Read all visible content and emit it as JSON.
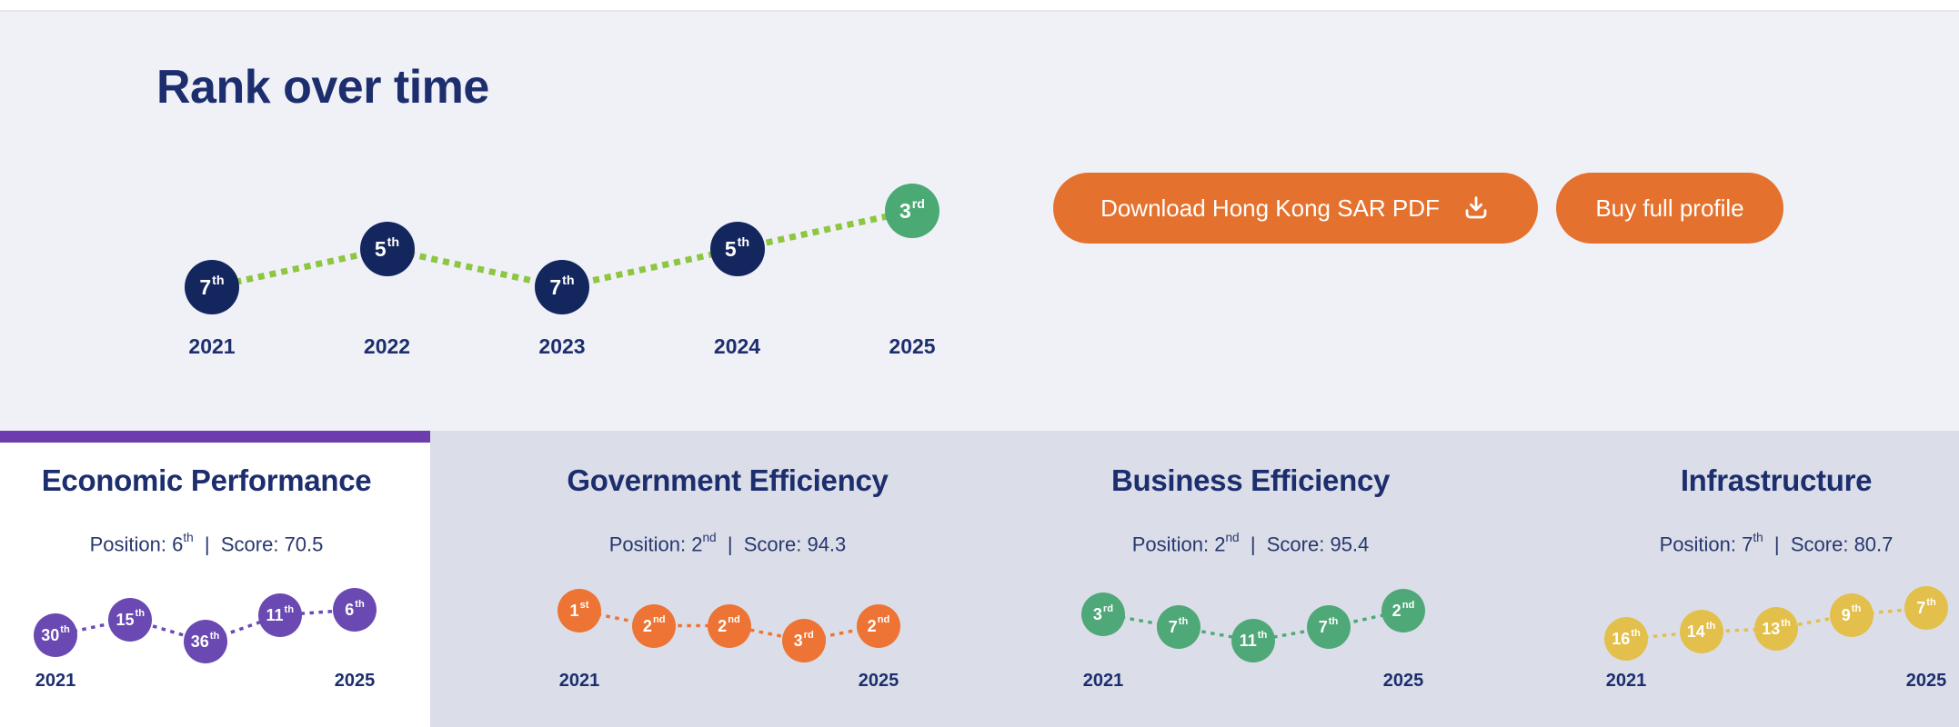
{
  "header": {
    "title": "Rank over time"
  },
  "buttons": {
    "download_label": "Download Hong Kong SAR PDF",
    "download_icon": "download-tray-icon",
    "buy_label": "Buy full profile",
    "accent_color": "#E4722E"
  },
  "colors": {
    "page_background": "#F0F1F7",
    "bottom_background": "#DBDEE8",
    "navy_text": "#1C2E6E",
    "active_tab_bar": "#6C3DAC",
    "main_node": "#14265E",
    "main_last_node": "#4BA974",
    "main_line": "#8DC63F",
    "economic": "#6A49B2",
    "government": "#ED7434",
    "business": "#4FA878",
    "infrastructure": "#E3BF4C"
  },
  "panels": [
    {
      "title": "Economic Performance",
      "position_prefix": "Position: 6",
      "position_sup": "th",
      "position_suffix": "  |  Score: 70.5",
      "active": true
    },
    {
      "title": "Government Efficiency",
      "position_prefix": "Position: 2",
      "position_sup": "nd",
      "position_suffix": "  |  Score: 94.3",
      "active": false
    },
    {
      "title": "Business Efficiency",
      "position_prefix": "Position: 2",
      "position_sup": "nd",
      "position_suffix": "  |  Score: 95.4",
      "active": false
    },
    {
      "title": "Infrastructure",
      "position_prefix": "Position: 7",
      "position_sup": "th",
      "position_suffix": "  |  Score: 80.7",
      "active": false
    }
  ],
  "chart_data": [
    {
      "id": "main",
      "type": "line",
      "title": "Rank over time",
      "x": [
        2021,
        2022,
        2023,
        2024,
        2025
      ],
      "ranks": [
        7,
        5,
        7,
        5,
        3
      ],
      "labels": [
        "7th",
        "5th",
        "7th",
        "5th",
        "3rd"
      ],
      "y_axis": "rank (lower is better)",
      "x_labels_shown": "all",
      "grid": false,
      "legend": "none",
      "node_color": "#14265E",
      "last_node_color": "#4BA974",
      "line_color": "#8DC63F"
    },
    {
      "id": "economic",
      "type": "line",
      "category": "Economic Performance",
      "position": "6th",
      "score": 70.5,
      "x": [
        2021,
        2022,
        2023,
        2024,
        2025
      ],
      "ranks": [
        30,
        15,
        36,
        11,
        6
      ],
      "labels": [
        "30th",
        "15th",
        "36th",
        "11th",
        "6th"
      ],
      "x_labels_shown": "ends",
      "color": "#6A49B2"
    },
    {
      "id": "government",
      "type": "line",
      "category": "Government Efficiency",
      "position": "2nd",
      "score": 94.3,
      "x": [
        2021,
        2022,
        2023,
        2024,
        2025
      ],
      "ranks": [
        1,
        2,
        2,
        3,
        2
      ],
      "labels": [
        "1st",
        "2nd",
        "2nd",
        "3rd",
        "2nd"
      ],
      "x_labels_shown": "ends",
      "color": "#ED7434"
    },
    {
      "id": "business",
      "type": "line",
      "category": "Business Efficiency",
      "position": "2nd",
      "score": 95.4,
      "x": [
        2021,
        2022,
        2023,
        2024,
        2025
      ],
      "ranks": [
        3,
        7,
        11,
        7,
        2
      ],
      "labels": [
        "3rd",
        "7th",
        "11th",
        "7th",
        "2nd"
      ],
      "x_labels_shown": "ends",
      "color": "#4FA878"
    },
    {
      "id": "infrastructure",
      "type": "line",
      "category": "Infrastructure",
      "position": "7th",
      "score": 80.7,
      "x": [
        2021,
        2022,
        2023,
        2024,
        2025
      ],
      "ranks": [
        16,
        14,
        13,
        9,
        7
      ],
      "labels": [
        "16th",
        "14th",
        "13th",
        "9th",
        "7th"
      ],
      "x_labels_shown": "ends",
      "color": "#E3BF4C"
    }
  ]
}
